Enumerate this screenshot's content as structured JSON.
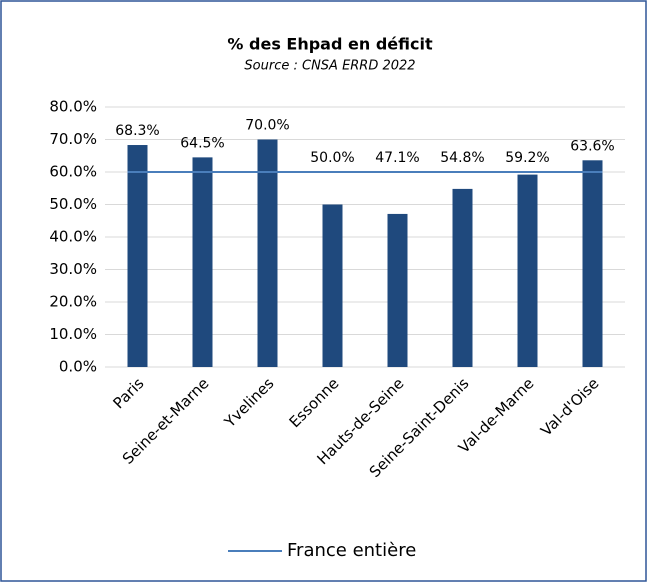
{
  "chart_data": {
    "type": "bar",
    "title": "% des Ehpad en déficit",
    "subtitle": "Source : CNSA ERRD 2022",
    "categories": [
      "Paris",
      "Seine-et-Marne",
      "Yvelines",
      "Essonne",
      "Hauts-de-Seine",
      "Seine-Saint-Denis",
      "Val-de-Marne",
      "Val-d'Oise"
    ],
    "values": [
      68.3,
      64.5,
      70.0,
      50.0,
      47.1,
      54.8,
      59.2,
      63.6
    ],
    "value_labels": [
      "68.3%",
      "64.5%",
      "70.0%",
      "50.0%",
      "47.1%",
      "54.8%",
      "59.2%",
      "63.6%"
    ],
    "color": "#1f497d",
    "reference_line": {
      "name": "France entière",
      "value": 60,
      "color": "#4a7ebb"
    },
    "ylim": [
      0,
      80
    ],
    "yticks": [
      {
        "value": 0,
        "label": "0.0%"
      },
      {
        "value": 10,
        "label": "10.0%"
      },
      {
        "value": 20,
        "label": "20.0%"
      },
      {
        "value": 30,
        "label": "30.0%"
      },
      {
        "value": 40,
        "label": "40.0%"
      },
      {
        "value": 50,
        "label": "50.0%"
      },
      {
        "value": 60,
        "label": "60.0%"
      },
      {
        "value": 70,
        "label": "70.0%"
      },
      {
        "value": 80,
        "label": "80.0%"
      }
    ],
    "grid": true,
    "legend": "bottom"
  }
}
